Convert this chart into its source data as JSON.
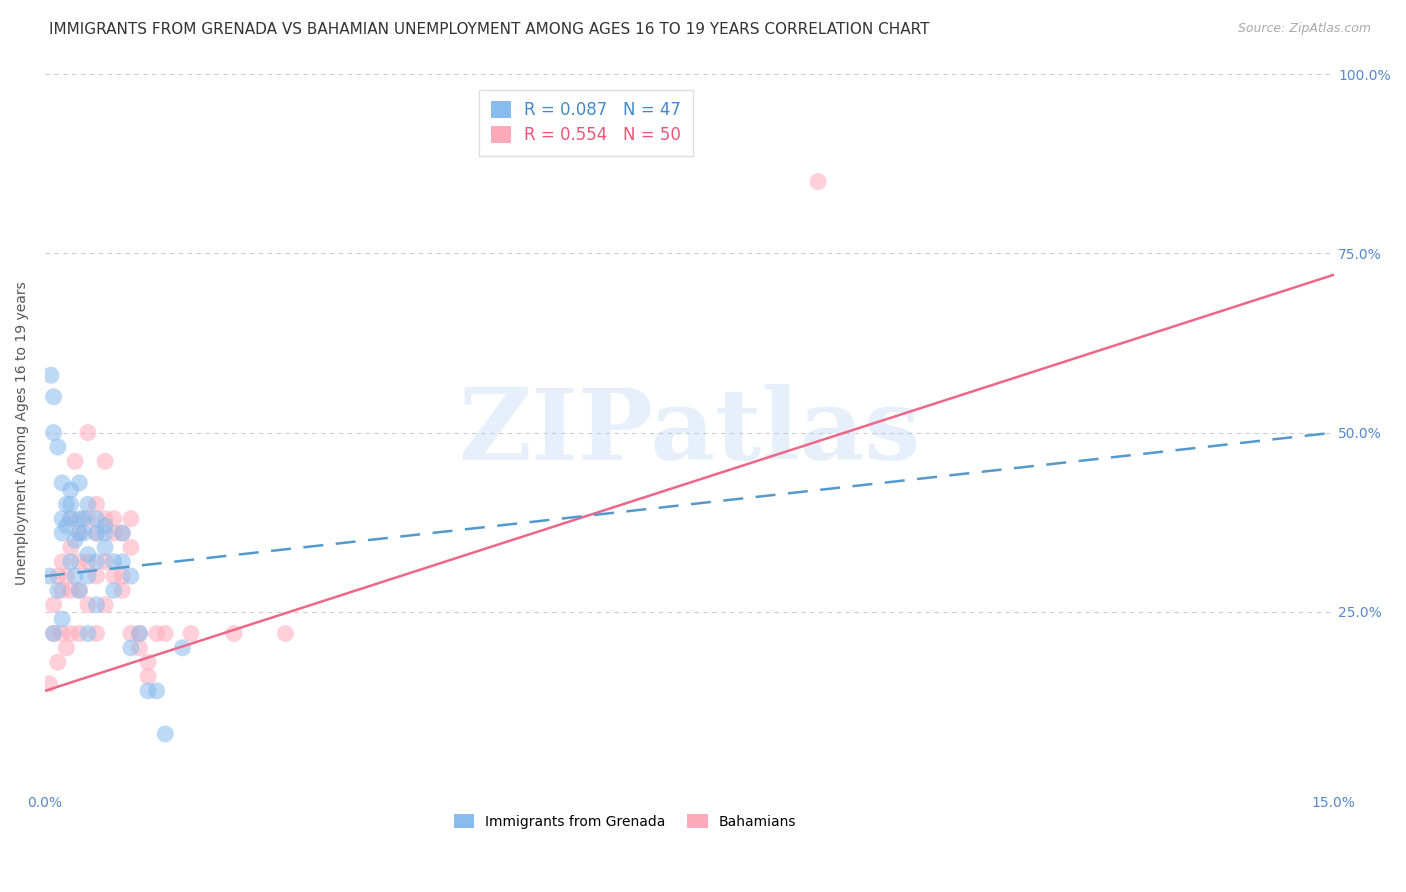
{
  "title": "IMMIGRANTS FROM GRENADA VS BAHAMIAN UNEMPLOYMENT AMONG AGES 16 TO 19 YEARS CORRELATION CHART",
  "source": "Source: ZipAtlas.com",
  "ylabel": "Unemployment Among Ages 16 to 19 years",
  "x_min": 0.0,
  "x_max": 0.15,
  "y_min": 0.0,
  "y_max": 1.0,
  "yticks_right": [
    0.25,
    0.5,
    0.75,
    1.0
  ],
  "ytick_labels_right": [
    "25.0%",
    "50.0%",
    "75.0%",
    "100.0%"
  ],
  "xticks": [
    0.0,
    0.05,
    0.1,
    0.15
  ],
  "xtick_labels": [
    "0.0%",
    "",
    "",
    "15.0%"
  ],
  "grid_color": "#cccccc",
  "background_color": "#ffffff",
  "series": [
    {
      "name": "Immigrants from Grenada",
      "R": 0.087,
      "N": 47,
      "color": "#88bbee",
      "line_color": "#5599cc",
      "line_style": "--",
      "x": [
        0.0005,
        0.0007,
        0.001,
        0.001,
        0.001,
        0.0015,
        0.0015,
        0.002,
        0.002,
        0.002,
        0.002,
        0.0025,
        0.0025,
        0.003,
        0.003,
        0.003,
        0.003,
        0.0035,
        0.0035,
        0.004,
        0.004,
        0.004,
        0.004,
        0.0045,
        0.0045,
        0.005,
        0.005,
        0.005,
        0.005,
        0.006,
        0.006,
        0.006,
        0.006,
        0.007,
        0.007,
        0.007,
        0.008,
        0.008,
        0.009,
        0.009,
        0.01,
        0.01,
        0.011,
        0.012,
        0.013,
        0.014,
        0.016
      ],
      "y": [
        0.3,
        0.58,
        0.55,
        0.5,
        0.22,
        0.48,
        0.28,
        0.43,
        0.38,
        0.36,
        0.24,
        0.4,
        0.37,
        0.42,
        0.4,
        0.38,
        0.32,
        0.35,
        0.3,
        0.43,
        0.38,
        0.36,
        0.28,
        0.38,
        0.36,
        0.4,
        0.33,
        0.3,
        0.22,
        0.38,
        0.36,
        0.32,
        0.26,
        0.37,
        0.36,
        0.34,
        0.32,
        0.28,
        0.36,
        0.32,
        0.3,
        0.2,
        0.22,
        0.14,
        0.14,
        0.08,
        0.2
      ],
      "trend_x": [
        0.0,
        0.15
      ],
      "trend_y": [
        0.3,
        0.5
      ]
    },
    {
      "name": "Bahamians",
      "R": 0.554,
      "N": 50,
      "color": "#ffaabb",
      "line_color": "#ee6688",
      "line_style": "-",
      "x": [
        0.0005,
        0.001,
        0.001,
        0.0015,
        0.0015,
        0.002,
        0.002,
        0.002,
        0.0025,
        0.0025,
        0.003,
        0.003,
        0.003,
        0.003,
        0.0035,
        0.004,
        0.004,
        0.004,
        0.004,
        0.005,
        0.005,
        0.005,
        0.005,
        0.006,
        0.006,
        0.006,
        0.006,
        0.007,
        0.007,
        0.007,
        0.007,
        0.008,
        0.008,
        0.008,
        0.009,
        0.009,
        0.009,
        0.01,
        0.01,
        0.01,
        0.011,
        0.011,
        0.012,
        0.012,
        0.013,
        0.014,
        0.017,
        0.022,
        0.028,
        0.09
      ],
      "y": [
        0.15,
        0.26,
        0.22,
        0.3,
        0.18,
        0.32,
        0.28,
        0.22,
        0.3,
        0.2,
        0.38,
        0.34,
        0.28,
        0.22,
        0.46,
        0.36,
        0.32,
        0.28,
        0.22,
        0.5,
        0.38,
        0.32,
        0.26,
        0.4,
        0.36,
        0.3,
        0.22,
        0.46,
        0.38,
        0.32,
        0.26,
        0.38,
        0.36,
        0.3,
        0.36,
        0.3,
        0.28,
        0.38,
        0.34,
        0.22,
        0.22,
        0.2,
        0.18,
        0.16,
        0.22,
        0.22,
        0.22,
        0.22,
        0.22,
        0.85
      ],
      "trend_x": [
        0.0,
        0.15
      ],
      "trend_y": [
        0.14,
        0.72
      ]
    }
  ],
  "legend_entries": [
    {
      "label": "R = 0.087   N = 47",
      "color": "#88bbee",
      "text_color": "#4488cc"
    },
    {
      "label": "R = 0.554   N = 50",
      "color": "#ffaabb",
      "text_color": "#ee5577"
    }
  ],
  "bottom_legend": [
    {
      "label": "Immigrants from Grenada",
      "color": "#88bbee"
    },
    {
      "label": "Bahamians",
      "color": "#ffaabb"
    }
  ],
  "watermark_text": "ZIPatlas",
  "watermark_color": "#aaccee",
  "title_fontsize": 11,
  "label_fontsize": 10,
  "tick_fontsize": 10,
  "legend_fontsize": 12
}
